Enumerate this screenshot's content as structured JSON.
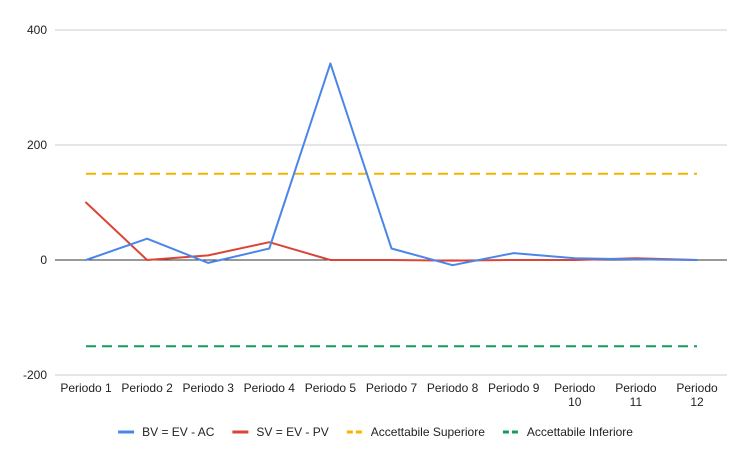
{
  "chart_data": {
    "type": "line",
    "title": "",
    "xlabel": "",
    "ylabel": "",
    "categories": [
      [
        "Periodo 1"
      ],
      [
        "Periodo 2"
      ],
      [
        "Periodo 3"
      ],
      [
        "Periodo 4"
      ],
      [
        "Periodo 5"
      ],
      [
        "Periodo 7"
      ],
      [
        "Periodo 8"
      ],
      [
        "Periodo 9"
      ],
      [
        "Periodo",
        "10"
      ],
      [
        "Periodo",
        "11"
      ],
      [
        "Periodo",
        "12"
      ]
    ],
    "ylim": [
      -200,
      400
    ],
    "yticks": [
      -200,
      0,
      200,
      400
    ],
    "grid": true,
    "legend_position": "bottom",
    "series": [
      {
        "name": "BV = EV - AC",
        "color": "#4a86e8",
        "style": "solid",
        "values": [
          0,
          37,
          -5,
          20,
          342,
          20,
          -9,
          12,
          3,
          1,
          0
        ]
      },
      {
        "name": "SV = EV - PV",
        "color": "#db4437",
        "style": "solid",
        "values": [
          100,
          0,
          8,
          31,
          0,
          0,
          -1,
          0,
          0,
          3,
          0
        ]
      },
      {
        "name": "Accettabile Superiore",
        "color": "#f4b400",
        "style": "dashed",
        "values": [
          150,
          150,
          150,
          150,
          150,
          150,
          150,
          150,
          150,
          150,
          150
        ]
      },
      {
        "name": "Accettabile Inferiore",
        "color": "#0f9d58",
        "style": "dashed",
        "values": [
          -150,
          -150,
          -150,
          -150,
          -150,
          -150,
          -150,
          -150,
          -150,
          -150,
          -150
        ]
      }
    ]
  }
}
